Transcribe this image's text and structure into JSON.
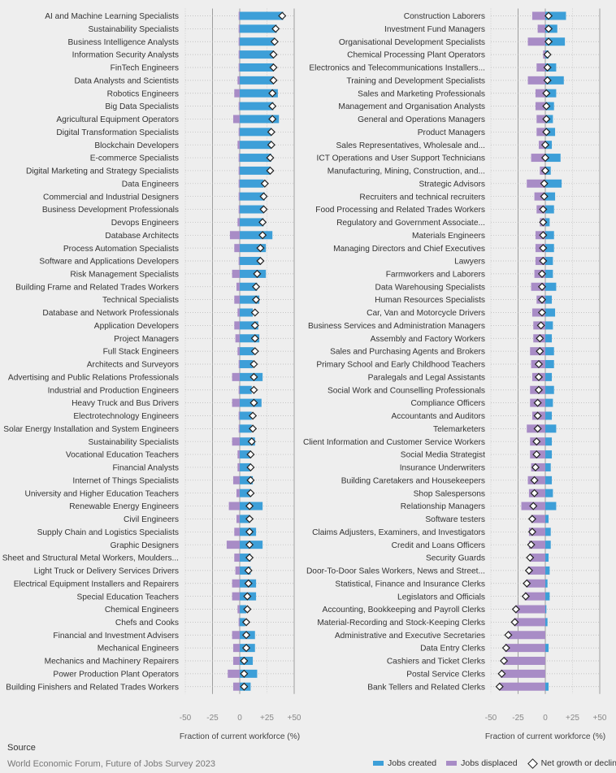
{
  "colors": {
    "created": "#3d9fd8",
    "displaced": "#a88cc6",
    "diamond_fill": "#ffffff",
    "diamond_stroke": "#222222"
  },
  "chart_data": [
    {
      "type": "bar",
      "orientation": "horizontal-diverging",
      "xlabel": "Fraction of current workforce (%)",
      "xlim": [
        -50,
        50
      ],
      "xticks": [
        -50,
        -25,
        0,
        25,
        50
      ],
      "xtick_labels": [
        "-50",
        "-25",
        "0",
        "+25",
        "+50"
      ],
      "legend": "bottom-right",
      "series_names": [
        "Jobs created",
        "Jobs displaced",
        "Net growth or decline"
      ],
      "categories": [
        "AI and Machine Learning Specialists",
        "Sustainability Specialists",
        "Business Intelligence Analysts",
        "Information Security Analysts",
        "FinTech Engineers",
        "Data Analysts and Scientists",
        "Robotics Engineers",
        "Big Data Specialists",
        "Agricultural Equipment Operators",
        "Digital Transformation Specialists",
        "Blockchain Developers",
        "E-commerce Specialists",
        "Digital Marketing and Strategy Specialists",
        "Data Engineers",
        "Commercial and Industrial Designers",
        "Business Development Professionals",
        "Devops Engineers",
        "Database Architects",
        "Process Automation Specialists",
        "Software and Applications Developers",
        "Risk Management Specialists",
        "Building Frame and Related Trades Workers",
        "Technical Specialists",
        "Database and Network Professionals",
        "Application Developers",
        "Project Managers",
        "Full Stack Engineers",
        "Architects and Surveyors",
        "Advertising and Public Relations Professionals",
        "Industrial and Production Engineers",
        "Heavy Truck and Bus Drivers",
        "Electrotechnology Engineers",
        "Solar Energy Installation and System Engineers",
        "Sustainability Specialists",
        "Vocational Education Teachers",
        "Financial Analysts",
        "Internet of Things Specialists",
        "University and Higher Education Teachers",
        "Renewable Energy Engineers",
        "Civil Engineers",
        "Supply Chain and Logistics Specialists",
        "Graphic Designers",
        "Sheet and Structural Metal Workers, Moulders...",
        "Light Truck or Delivery Services Drivers",
        "Electrical Equipment Installers and Repairers",
        "Special Education Teachers",
        "Chemical Engineers",
        "Chefs and Cooks",
        "Financial and Investment Advisers",
        "Mechanical Engineers",
        "Mechanics and Machinery Repairers",
        "Power Production Plant Operators",
        "Building Finishers and Related Trades Workers"
      ],
      "created": [
        40,
        34,
        32,
        31,
        31,
        31,
        35,
        31,
        36,
        29,
        29,
        29,
        28,
        22,
        23,
        22,
        22,
        30,
        24,
        19,
        24,
        16,
        18,
        12,
        17,
        18,
        13,
        12,
        21,
        11,
        20,
        11,
        11,
        14,
        10,
        10,
        12,
        10,
        21,
        9,
        15,
        21,
        10,
        10,
        15,
        15,
        6,
        5,
        14,
        14,
        12,
        16,
        10
      ],
      "displaced": [
        -1,
        -1,
        -1,
        -1,
        -1,
        -2,
        -5,
        -1,
        -6,
        -1,
        -2,
        -1,
        -1,
        -1,
        -1,
        -1,
        -2,
        -9,
        -5,
        -1,
        -7,
        -3,
        -5,
        -2,
        -5,
        -4,
        -2,
        -1,
        -7,
        -1,
        -7,
        -1,
        -1,
        -7,
        -2,
        -2,
        -6,
        -3,
        -10,
        -3,
        -5,
        -12,
        -5,
        -4,
        -7,
        -7,
        -2,
        -1,
        -7,
        -6,
        -6,
        -11,
        -6
      ],
      "net": [
        39,
        33,
        32,
        31,
        31,
        31,
        30,
        30,
        30,
        29,
        29,
        28,
        28,
        23,
        22,
        22,
        21,
        21,
        19,
        19,
        16,
        15,
        15,
        14,
        14,
        14,
        14,
        13,
        13,
        13,
        13,
        12,
        12,
        11,
        10,
        10,
        10,
        10,
        9,
        9,
        9,
        9,
        9,
        8,
        8,
        7,
        7,
        6,
        6,
        6,
        4,
        4,
        4
      ]
    },
    {
      "type": "bar",
      "orientation": "horizontal-diverging",
      "xlabel": "Fraction of current workforce (%)",
      "xlim": [
        -50,
        50
      ],
      "xticks": [
        -50,
        -25,
        0,
        25,
        50
      ],
      "xtick_labels": [
        "-50",
        "-25",
        "0",
        "+25",
        "+50"
      ],
      "categories": [
        "Construction Laborers",
        "Investment Fund Managers",
        "Organisational Development Specialists",
        "Chemical Processing Plant Operators",
        "Electronics and Telecommunications Installers...",
        "Training and Development Specialists",
        "Sales and Marketing Professionals",
        "Management and Organisation Analysts",
        "General and Operations Managers",
        "Product Managers",
        "Sales Representatives, Wholesale and...",
        "ICT Operations and User Support Technicians",
        "Manufacturing, Mining, Construction, and...",
        "Strategic Advisors",
        "Recruiters and technical recruiters",
        "Food Processing and Related Trades Workers",
        "Regulatory and Government Associate...",
        "Materials Engineers",
        "Managing Directors and Chief Executives",
        "Lawyers",
        "Farmworkers and Laborers",
        "Data Warehousing Specialists",
        "Human Resources Specialists",
        "Car, Van and Motorcycle Drivers",
        "Business Services and Administration Managers",
        "Assembly and Factory Workers",
        "Sales and Purchasing Agents and Brokers",
        "Primary School and Early Childhood Teachers",
        "Paralegals and Legal Assistants",
        "Social Work and Counselling Professionals",
        "Compliance Officers",
        "Accountants and Auditors",
        "Telemarketers",
        "Client Information and Customer Service Workers",
        "Social Media Strategist",
        "Insurance Underwriters",
        "Building Caretakers and Housekeepers",
        "Shop Salespersons",
        "Relationship Managers",
        "Software testers",
        "Claims Adjusters, Examiners, and Investigators",
        "Credit and Loans Officers",
        "Security Guards",
        "Door-To-Door Sales Workers, News and Street...",
        "Statistical, Finance and Insurance Clerks",
        "Legislators and Officials",
        "Accounting, Bookkeeping and Payroll Clerks",
        "Material-Recording and Stock-Keeping Clerks",
        "Administrative and Executive Secretaries",
        "Data Entry Clerks",
        "Cashiers and Ticket Clerks",
        "Postal Service Clerks",
        "Bank Tellers and Related Clerks"
      ],
      "created": [
        19,
        11,
        18,
        3,
        10,
        17,
        10,
        8,
        7,
        9,
        6,
        14,
        5,
        15,
        9,
        8,
        4,
        8,
        8,
        7,
        7,
        10,
        6,
        9,
        7,
        6,
        8,
        8,
        6,
        8,
        7,
        6,
        10,
        6,
        6,
        5,
        6,
        7,
        10,
        3,
        5,
        5,
        3,
        4,
        2,
        4,
        1,
        2,
        0,
        3,
        0,
        0,
        3
      ],
      "displaced": [
        -12,
        -7,
        -16,
        -2,
        -8,
        -16,
        -9,
        -9,
        -8,
        -8,
        -6,
        -13,
        -5,
        -17,
        -10,
        -8,
        -5,
        -9,
        -9,
        -9,
        -10,
        -13,
        -8,
        -12,
        -11,
        -11,
        -14,
        -13,
        -12,
        -14,
        -14,
        -12,
        -17,
        -14,
        -14,
        -13,
        -16,
        -15,
        -22,
        -13,
        -15,
        -15,
        -14,
        -16,
        -17,
        -19,
        -27,
        -28,
        -34,
        -37,
        -38,
        -41,
        -42
      ],
      "net": [
        3,
        3,
        3,
        2,
        2,
        2,
        1,
        1,
        1,
        1,
        0,
        0,
        0,
        -1,
        -1,
        -2,
        -2,
        -2,
        -2,
        -2,
        -3,
        -3,
        -3,
        -3,
        -4,
        -5,
        -5,
        -6,
        -6,
        -6,
        -7,
        -7,
        -7,
        -8,
        -8,
        -9,
        -10,
        -10,
        -11,
        -12,
        -12,
        -13,
        -14,
        -15,
        -17,
        -18,
        -27,
        -28,
        -34,
        -36,
        -38,
        -40,
        -42
      ]
    }
  ],
  "source": {
    "label": "Source",
    "text": "World Economic Forum, Future of Jobs Survey 2023"
  },
  "legend": {
    "created": "Jobs created",
    "displaced": "Jobs displaced",
    "net": "Net growth or decline"
  }
}
